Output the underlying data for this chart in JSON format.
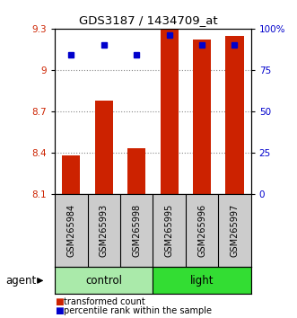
{
  "title": "GDS3187 / 1434709_at",
  "samples": [
    "GSM265984",
    "GSM265993",
    "GSM265998",
    "GSM265995",
    "GSM265996",
    "GSM265997"
  ],
  "groups": [
    "control",
    "control",
    "control",
    "light",
    "light",
    "light"
  ],
  "group_labels": [
    "control",
    "light"
  ],
  "control_color": "#AAEAAA",
  "light_color": "#33DD33",
  "bar_values": [
    8.38,
    8.78,
    8.43,
    9.29,
    9.22,
    9.25
  ],
  "dot_values": [
    84,
    90,
    84,
    96,
    90,
    90
  ],
  "bar_color": "#CC2200",
  "dot_color": "#0000CC",
  "ylim_left": [
    8.1,
    9.3
  ],
  "ylim_right": [
    0,
    100
  ],
  "yticks_left": [
    8.1,
    8.4,
    8.7,
    9.0,
    9.3
  ],
  "yticks_right": [
    0,
    25,
    50,
    75,
    100
  ],
  "ytick_labels_left": [
    "8.1",
    "8.4",
    "8.7",
    "9",
    "9.3"
  ],
  "ytick_labels_right": [
    "0",
    "25",
    "50",
    "75",
    "100%"
  ],
  "background_color": "#ffffff",
  "bar_width": 0.55,
  "legend_items": [
    "transformed count",
    "percentile rank within the sample"
  ]
}
